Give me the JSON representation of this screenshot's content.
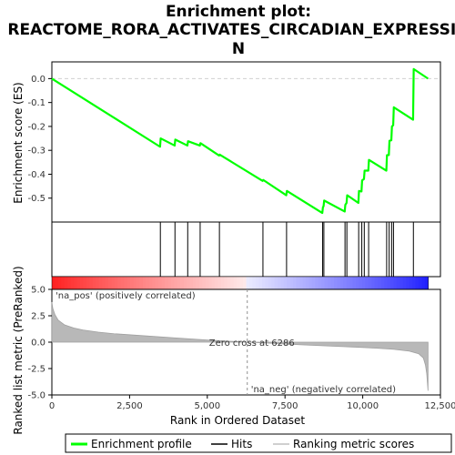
{
  "chart_data": {
    "type": "line",
    "title_lines": [
      "Enrichment plot:",
      "REACTOME_RORA_ACTIVATES_CIRCADIAN_EXPRESSIO",
      "N"
    ],
    "top_panel": {
      "ylabel": "Enrichment score (ES)",
      "ylim": [
        -0.6,
        0.07
      ],
      "yticks": [
        0.0,
        -0.1,
        -0.2,
        -0.3,
        -0.4,
        -0.5
      ],
      "ytick_labels": [
        "0.0",
        "-0.1",
        "-0.2",
        "-0.3",
        "-0.4",
        "-0.5"
      ],
      "series_name": "Enrichment profile",
      "color": "#00ff00",
      "x": [
        0,
        3480,
        3500,
        3950,
        3970,
        4360,
        4380,
        4760,
        4780,
        5380,
        5400,
        6780,
        6800,
        7540,
        7560,
        8700,
        8720,
        8740,
        8760,
        9420,
        9440,
        9480,
        9500,
        9860,
        9880,
        9960,
        9980,
        10040,
        10060,
        10180,
        10200,
        10760,
        10780,
        10840,
        10860,
        10920,
        10940,
        10980,
        11000,
        11620,
        11640,
        12100
      ],
      "y": [
        0.0,
        -0.285,
        -0.25,
        -0.28,
        -0.255,
        -0.28,
        -0.262,
        -0.28,
        -0.27,
        -0.322,
        -0.318,
        -0.428,
        -0.424,
        -0.488,
        -0.47,
        -0.562,
        -0.538,
        -0.534,
        -0.51,
        -0.556,
        -0.528,
        -0.52,
        -0.488,
        -0.52,
        -0.47,
        -0.472,
        -0.426,
        -0.42,
        -0.385,
        -0.385,
        -0.34,
        -0.385,
        -0.32,
        -0.32,
        -0.26,
        -0.258,
        -0.2,
        -0.195,
        -0.12,
        -0.172,
        0.04,
        0.0
      ]
    },
    "hits": [
      3490,
      3960,
      4370,
      4770,
      5390,
      6790,
      7550,
      8710,
      8750,
      9430,
      9490,
      9870,
      9970,
      10050,
      10190,
      10770,
      10850,
      10930,
      10990,
      11630
    ],
    "ranking_panel": {
      "ylabel": "Ranked list metric (PreRanked)",
      "ylim": [
        -5,
        5
      ],
      "yticks": [
        5.0,
        2.5,
        0.0,
        -2.5,
        -5.0
      ],
      "ytick_labels": [
        "5.0",
        "2.5",
        "0.0",
        "-2.5",
        "-5.0"
      ],
      "x": [
        0,
        30,
        100,
        200,
        400,
        700,
        1000,
        1500,
        2000,
        3000,
        4000,
        5000,
        6286,
        7000,
        8000,
        9000,
        10000,
        10500,
        11000,
        11500,
        11800,
        11950,
        12020,
        12060,
        12100
      ],
      "values": [
        3.8,
        3.2,
        2.6,
        2.1,
        1.65,
        1.35,
        1.15,
        0.95,
        0.8,
        0.6,
        0.4,
        0.2,
        0.0,
        -0.1,
        -0.25,
        -0.38,
        -0.5,
        -0.58,
        -0.68,
        -0.85,
        -1.1,
        -1.5,
        -2.2,
        -3.0,
        -4.6
      ],
      "zero_cross_label": "Zero cross at 6286",
      "zero_cross": 6286,
      "pos_label": "'na_pos' (positively correlated)",
      "neg_label": "'na_neg' (negatively correlated)",
      "pos_color": "#ff0000",
      "neg_color": "#0000ff"
    },
    "xlabel": "Rank in Ordered Dataset",
    "xlim": [
      0,
      12500
    ],
    "xticks": [
      0,
      2500,
      5000,
      7500,
      10000,
      12500
    ],
    "xtick_labels": [
      "0",
      "2,500",
      "5,000",
      "7,500",
      "10,000",
      "12,500"
    ],
    "n_genes": 12100,
    "legend": [
      "Enrichment profile",
      "Hits",
      "Ranking metric scores"
    ]
  }
}
